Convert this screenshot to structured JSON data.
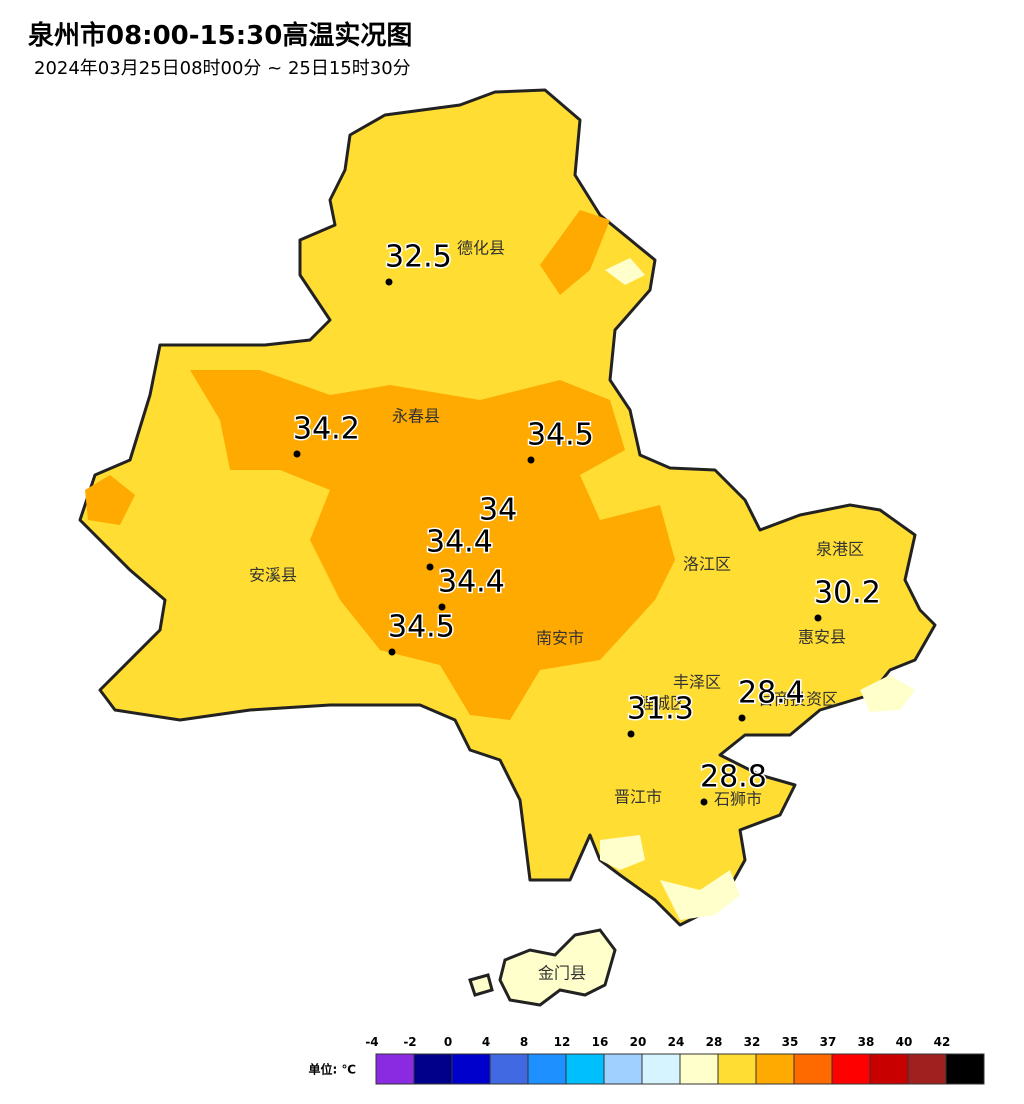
{
  "header": {
    "title": "泉州市08:00-15:30高温实况图",
    "subtitle": "2024年03月25日08时00分 ~ 25日15时30分"
  },
  "districts": [
    "德化县",
    "永春县",
    "安溪县",
    "南安市",
    "洛江区",
    "泉港区",
    "惠安县",
    "丰泽区",
    "鲤城区",
    "台商投资区",
    "晋江市",
    "石狮市",
    "金门县"
  ],
  "stations": [
    32.5,
    34.2,
    34.5,
    34.0,
    34.4,
    34.4,
    34.5,
    30.2,
    28.4,
    31.3,
    28.8
  ],
  "legend": {
    "unit": "单位: ℃",
    "ticks": [
      -4,
      -2,
      0,
      4,
      8,
      12,
      16,
      20,
      24,
      28,
      32,
      35,
      37,
      38,
      40,
      42
    ],
    "colors": [
      "#8a2be2",
      "#00008b",
      "#0000cd",
      "#4169e1",
      "#1e90ff",
      "#00bfff",
      "#a0d0ff",
      "#d6f4ff",
      "#ffffcc",
      "#ffdd33",
      "#ffaa00",
      "#ff6a00",
      "#ff0000",
      "#c80000",
      "#a02020",
      "#000000"
    ]
  }
}
